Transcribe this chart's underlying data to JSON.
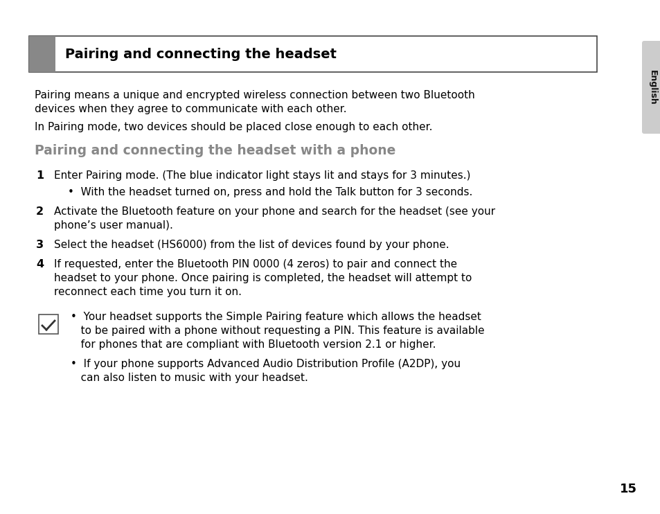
{
  "bg_color": "#ffffff",
  "page_number": "15",
  "header_title": "Pairing and connecting the headset",
  "header_box_color": "#ffffff",
  "header_bar_color": "#888888",
  "section_heading": "Pairing and connecting the headset with a phone",
  "section_heading_color": "#888888",
  "body_text_color": "#000000",
  "intro_line1a": "Pairing means a unique and encrypted wireless connection between two Bluetooth",
  "intro_line1b": "devices when they agree to communicate with each other.",
  "intro_line2": "In Pairing mode, two devices should be placed close enough to each other.",
  "step1_text": "Enter Pairing mode. (The blue indicator light stays lit and stays for 3 minutes.)",
  "step1_sub": "•  With the headset turned on, press and hold the Talk button for 3 seconds.",
  "step2_line1": "Activate the Bluetooth feature on your phone and search for the headset (see your",
  "step2_line2": "phone’s user manual).",
  "step3_text": "Select the headset (HS6000) from the list of devices found by your phone.",
  "step4_line1": "If requested, enter the Bluetooth PIN 0000 (4 zeros) to pair and connect the",
  "step4_line2": "headset to your phone. Once pairing is completed, the headset will attempt to",
  "step4_line3": "reconnect each time you turn it on.",
  "note1_line1": "•  Your headset supports the Simple Pairing feature which allows the headset",
  "note1_line2": "   to be paired with a phone without requesting a PIN. This feature is available",
  "note1_line3": "   for phones that are compliant with Bluetooth version 2.1 or higher.",
  "note2_line1": "•  If your phone supports Advanced Audio Distribution Profile (A2DP), you",
  "note2_line2": "   can also listen to music with your headset.",
  "english_tab_color": "#cccccc",
  "english_tab_text": "English"
}
